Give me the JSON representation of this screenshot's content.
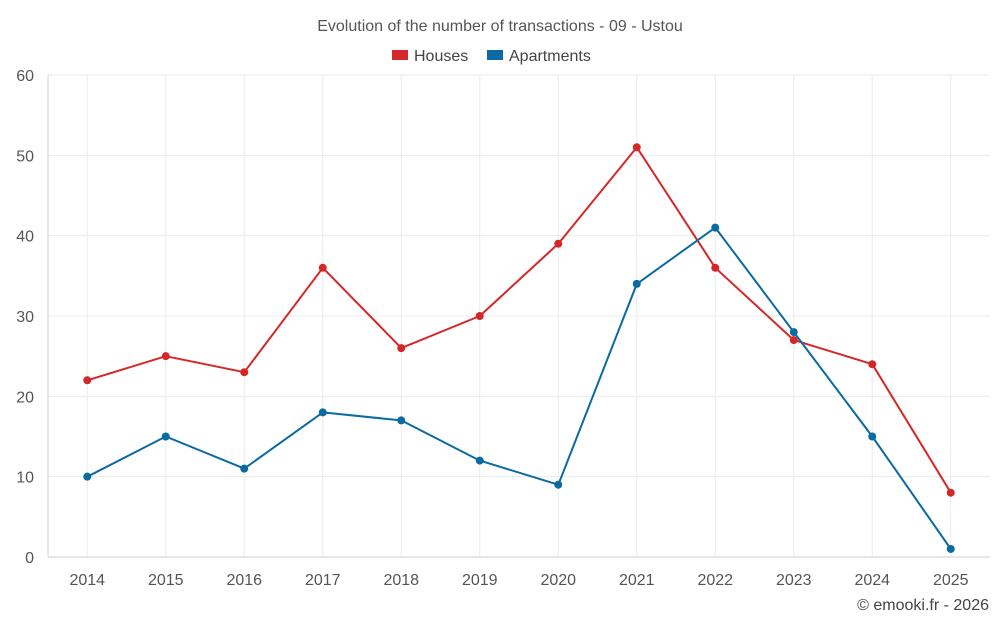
{
  "chart_data": {
    "type": "line",
    "title": "Evolution of the number of transactions - 09 - Ustou",
    "categories": [
      "2014",
      "2015",
      "2016",
      "2017",
      "2018",
      "2019",
      "2020",
      "2021",
      "2022",
      "2023",
      "2024",
      "2025"
    ],
    "series": [
      {
        "name": "Houses",
        "color": "#d62728",
        "values": [
          22,
          25,
          23,
          36,
          26,
          30,
          39,
          51,
          36,
          27,
          24,
          8
        ]
      },
      {
        "name": "Apartments",
        "color": "#0a6aa1",
        "values": [
          10,
          15,
          11,
          18,
          17,
          12,
          9,
          34,
          41,
          28,
          15,
          1
        ]
      }
    ],
    "ylim": [
      0,
      60
    ],
    "yticks": [
      0,
      10,
      20,
      30,
      40,
      50,
      60
    ],
    "xlabel": "",
    "ylabel": "",
    "grid": true,
    "legend_position": "top-center"
  },
  "credit": "© emooki.fr - 2026"
}
